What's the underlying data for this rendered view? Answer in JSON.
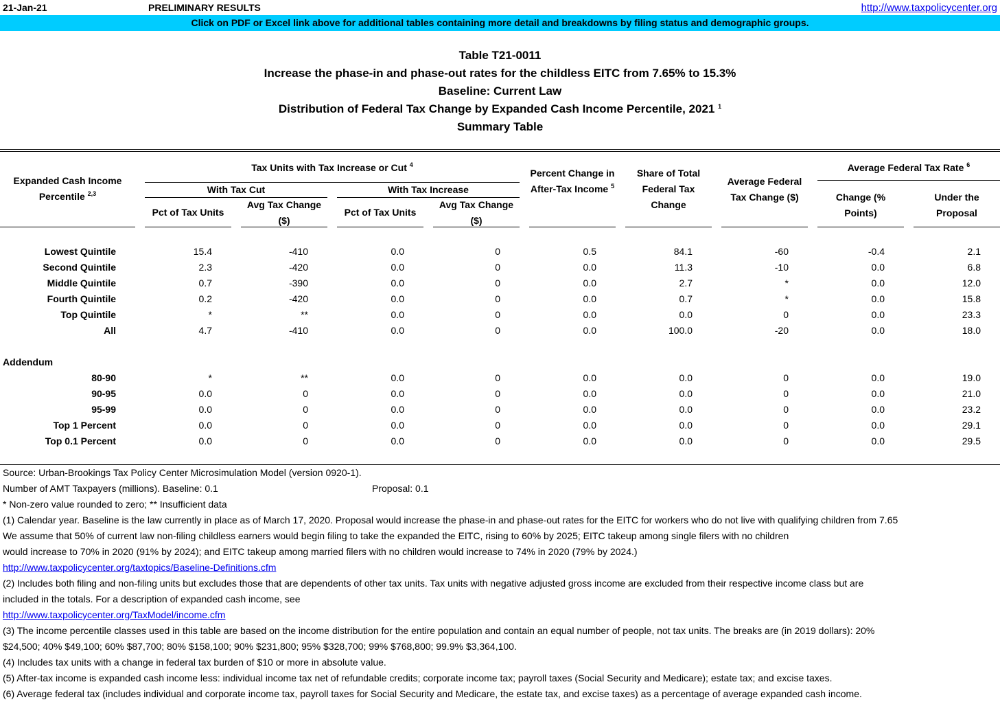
{
  "header": {
    "date": "21-Jan-21",
    "status": "PRELIMINARY RESULTS",
    "url": "http://www.taxpolicycenter.org"
  },
  "banner": "Click on PDF or Excel link above for additional tables containing more detail and breakdowns by filing status and demographic groups.",
  "title": {
    "lines": [
      "Table T21-0011",
      "Increase the phase-in and phase-out rates for the childless EITC from 7.65% to 15.3%",
      "Baseline: Current Law",
      "Distribution of Federal Tax Change by Expanded Cash Income Percentile, 2021",
      "Summary Table"
    ],
    "note": "1"
  },
  "columns": {
    "stub": {
      "text": "Expanded Cash Income Percentile",
      "note": "2,3"
    },
    "tax_units": {
      "text": "Tax Units with Tax Increase or Cut",
      "note": "4"
    },
    "with_cut": "With Tax Cut",
    "with_increase": "With Tax Increase",
    "cut_pct": "Pct of Tax Units",
    "cut_avg": "Avg Tax Change ($)",
    "inc_pct": "Pct of Tax Units",
    "inc_avg": "Avg Tax Change ($)",
    "pct_change": {
      "text": "Percent Change in After-Tax Income",
      "note": "5"
    },
    "share": "Share of Total Federal Tax Change",
    "avg_change": "Average Federal Tax Change ($)",
    "avg_rate": {
      "text": "Average Federal Tax Rate",
      "note": "6"
    },
    "rate_change": "Change (% Points)",
    "rate_proposal": "Under the Proposal"
  },
  "rows": [
    {
      "label": "Lowest Quintile",
      "values": [
        "15.4",
        "-410",
        "0.0",
        "0",
        "0.5",
        "84.1",
        "-60",
        "-0.4",
        "2.1"
      ]
    },
    {
      "label": "Second Quintile",
      "values": [
        "2.3",
        "-420",
        "0.0",
        "0",
        "0.0",
        "11.3",
        "-10",
        "0.0",
        "6.8"
      ]
    },
    {
      "label": "Middle Quintile",
      "values": [
        "0.7",
        "-390",
        "0.0",
        "0",
        "0.0",
        "2.7",
        "*",
        "0.0",
        "12.0"
      ]
    },
    {
      "label": "Fourth Quintile",
      "values": [
        "0.2",
        "-420",
        "0.0",
        "0",
        "0.0",
        "0.7",
        "*",
        "0.0",
        "15.8"
      ]
    },
    {
      "label": "Top Quintile",
      "values": [
        "*",
        "**",
        "0.0",
        "0",
        "0.0",
        "0.0",
        "0",
        "0.0",
        "23.3"
      ]
    },
    {
      "label": "All",
      "values": [
        "4.7",
        "-410",
        "0.0",
        "0",
        "0.0",
        "100.0",
        "-20",
        "0.0",
        "18.0"
      ]
    }
  ],
  "addendum": {
    "label": "Addendum",
    "rows": [
      {
        "label": "80-90",
        "values": [
          "*",
          "**",
          "0.0",
          "0",
          "0.0",
          "0.0",
          "0",
          "0.0",
          "19.0"
        ]
      },
      {
        "label": "90-95",
        "values": [
          "0.0",
          "0",
          "0.0",
          "0",
          "0.0",
          "0.0",
          "0",
          "0.0",
          "21.0"
        ]
      },
      {
        "label": "95-99",
        "values": [
          "0.0",
          "0",
          "0.0",
          "0",
          "0.0",
          "0.0",
          "0",
          "0.0",
          "23.2"
        ]
      },
      {
        "label": "Top 1 Percent",
        "values": [
          "0.0",
          "0",
          "0.0",
          "0",
          "0.0",
          "0.0",
          "0",
          "0.0",
          "29.1"
        ]
      },
      {
        "label": "Top 0.1 Percent",
        "values": [
          "0.0",
          "0",
          "0.0",
          "0",
          "0.0",
          "0.0",
          "0",
          "0.0",
          "29.5"
        ]
      }
    ]
  },
  "footer": {
    "source": "Source: Urban-Brookings Tax Policy Center Microsimulation Model (version 0920-1).",
    "amt_baseline": "Number of AMT Taxpayers (millions).  Baseline: 0.1",
    "amt_proposal": "Proposal: 0.1",
    "lines": [
      {
        "text": "* Non-zero value rounded to zero; ** Insufficient data"
      },
      {
        "text": "(1) Calendar year. Baseline is the law currently in place as of March 17, 2020. Proposal would increase the phase-in and phase-out rates for the EITC for workers who do not live with qualifying children from 7.65"
      },
      {
        "text": "We assume that 50% of current law non-filing childless earners would begin filing to take the expanded the EITC, rising to 60% by 2025; EITC takeup among single filers with no children"
      },
      {
        "text": "would increase to 70% in 2020 (91% by 2024); and EITC takeup among married filers with no children would increase to 74% in 2020 (79% by 2024.)"
      },
      {
        "link": "http://www.taxpolicycenter.org/taxtopics/Baseline-Definitions.cfm"
      },
      {
        "text": "(2) Includes both filing and non-filing units but excludes those that are dependents of other tax units. Tax units with negative adjusted gross income are excluded from their respective income class but are"
      },
      {
        "text": "included in the totals. For a description of expanded cash income, see"
      },
      {
        "link": "http://www.taxpolicycenter.org/TaxModel/income.cfm"
      },
      {
        "text": "(3) The income percentile classes used in this table are based on the income distribution for the entire population and contain an equal number of people, not tax units. The breaks are (in 2019 dollars): 20%"
      },
      {
        "text": "$24,500; 40% $49,100; 60% $87,700; 80% $158,100; 90% $231,800; 95% $328,700; 99% $768,800; 99.9% $3,364,100."
      },
      {
        "text": "(4) Includes tax units with a change in federal tax burden of $10 or more in absolute value."
      },
      {
        "text": "(5) After-tax income is expanded cash income less: individual income tax net of refundable credits; corporate income tax; payroll taxes (Social Security and Medicare); estate tax; and excise taxes."
      },
      {
        "text": "(6) Average federal tax (includes individual and corporate income tax, payroll taxes for Social Security and Medicare, the estate tax, and excise taxes) as a percentage of average expanded cash income."
      }
    ]
  }
}
